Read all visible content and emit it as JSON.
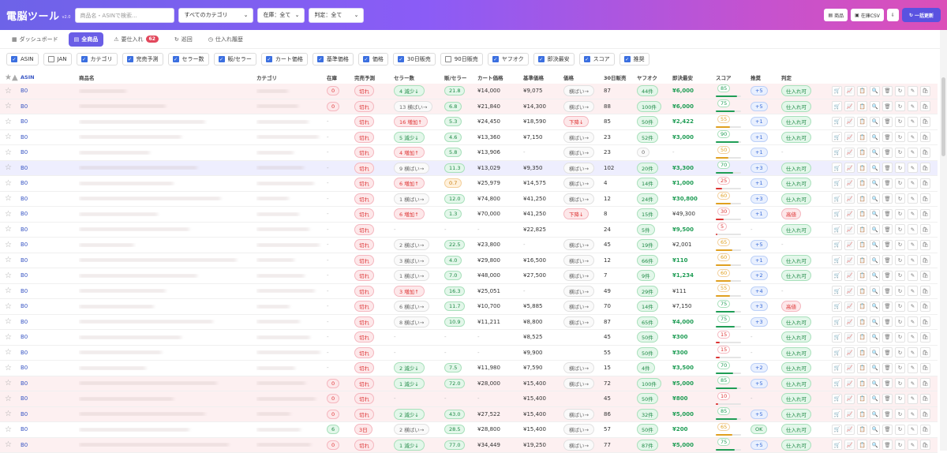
{
  "app": {
    "title": "電脳ツール",
    "version": "v2.0"
  },
  "search": {
    "placeholder": "商品名・ASINで検索..."
  },
  "filters": {
    "category": "すべてのカテゴリ",
    "stock": "在庫：全て",
    "judge": "判定：全て"
  },
  "top_buttons": {
    "product": "商品",
    "stock_csv": "在庫CSV",
    "download": "",
    "bulk_update": "一括更新"
  },
  "tabs": [
    {
      "label": "ダッシュボード",
      "icon": "grid-icon",
      "active": false
    },
    {
      "label": "全商品",
      "icon": "table-icon",
      "active": true
    },
    {
      "label": "要仕入れ",
      "icon": "alert-icon",
      "active": false,
      "badge": "62"
    },
    {
      "label": "巡回",
      "icon": "patrol-icon",
      "active": false
    },
    {
      "label": "仕入れ履歴",
      "icon": "history-icon",
      "active": false
    }
  ],
  "column_toggles": [
    {
      "label": "ASIN",
      "checked": true
    },
    {
      "label": "JAN",
      "checked": false
    },
    {
      "label": "カテゴリ",
      "checked": true
    },
    {
      "label": "完売予測",
      "checked": true
    },
    {
      "label": "セラー数",
      "checked": true
    },
    {
      "label": "販/セラー",
      "checked": true
    },
    {
      "label": "カート価格",
      "checked": true
    },
    {
      "label": "基準価格",
      "checked": true
    },
    {
      "label": "価格",
      "checked": true
    },
    {
      "label": "30日販売",
      "checked": true
    },
    {
      "label": "90日販売",
      "checked": false
    },
    {
      "label": "ヤフオク",
      "checked": true
    },
    {
      "label": "即決最安",
      "checked": true
    },
    {
      "label": "スコア",
      "checked": true
    },
    {
      "label": "推奨",
      "checked": true
    }
  ],
  "columns": {
    "star": "★▲",
    "asin": "ASIN",
    "name": "商品名",
    "cat": "カテゴリ",
    "stock": "在庫",
    "sold": "完売予測",
    "sellers": "セラー数",
    "ratio": "販/セラー",
    "cart": "カート価格",
    "base": "基準価格",
    "trend": "価格",
    "s30": "30日販売",
    "yafuoku": "ヤフオク",
    "imm": "即決最安",
    "score": "スコア",
    "rec": "推奨",
    "judge": "判定"
  },
  "rows": [
    {
      "asin": "B0",
      "stock": "0",
      "sold": "切れ",
      "sellers": "4 減少↓",
      "sellers_t": "green",
      "ratio": "21.8",
      "ratio_t": "green",
      "cart": "¥14,000",
      "base": "¥9,075",
      "trend": "横ばい→",
      "s30": "87",
      "yaf": "44件",
      "imm": "¥6,000",
      "imm_t": "g",
      "score": "85",
      "rec": "+5",
      "rec_t": "blue",
      "judge": "仕入れ可",
      "judge_t": "green",
      "bg": "pink",
      "star": "☆"
    },
    {
      "asin": "B0",
      "stock": "0",
      "sold": "切れ",
      "sellers": "13 横ばい→",
      "sellers_t": "gray",
      "ratio": "6.8",
      "ratio_t": "green",
      "cart": "¥21,840",
      "base": "¥14,300",
      "trend": "横ばい→",
      "s30": "88",
      "yaf": "100件",
      "imm": "¥6,000",
      "imm_t": "g",
      "score": "75",
      "rec": "+5",
      "rec_t": "blue",
      "judge": "仕入れ可",
      "judge_t": "green",
      "bg": "pink",
      "star": "☆"
    },
    {
      "asin": "B0",
      "stock": "-",
      "sold": "切れ",
      "sellers": "16 増加↑",
      "sellers_t": "red",
      "ratio": "5.3",
      "ratio_t": "green",
      "cart": "¥24,450",
      "base": "¥18,590",
      "trend": "下降↓",
      "trend_t": "red",
      "s30": "85",
      "yaf": "50件",
      "imm": "¥2,422",
      "imm_t": "g",
      "score": "55",
      "rec": "+1",
      "rec_t": "blue",
      "judge": "仕入れ可",
      "judge_t": "green",
      "bg": "",
      "star": "☆"
    },
    {
      "asin": "B0",
      "stock": "-",
      "sold": "切れ",
      "sellers": "5 減少↓",
      "sellers_t": "green",
      "ratio": "4.6",
      "ratio_t": "green",
      "cart": "¥13,360",
      "base": "¥7,150",
      "trend": "横ばい→",
      "s30": "23",
      "yaf": "52件",
      "imm": "¥3,000",
      "imm_t": "g",
      "score": "90",
      "rec": "+1",
      "rec_t": "blue",
      "judge": "仕入れ可",
      "judge_t": "green",
      "bg": "",
      "star": "☆"
    },
    {
      "asin": "B0",
      "stock": "-",
      "sold": "切れ",
      "sellers": "4 増加↑",
      "sellers_t": "red",
      "ratio": "5.8",
      "ratio_t": "green",
      "cart": "¥13,906",
      "base": "-",
      "trend": "横ばい→",
      "s30": "23",
      "yaf": "0",
      "yaf_t": "gray",
      "imm": "-",
      "imm_t": "d",
      "score": "50",
      "rec": "+1",
      "rec_t": "blue",
      "judge": "-",
      "judge_t": "none",
      "bg": "",
      "star": "☆"
    },
    {
      "asin": "B0",
      "stock": "-",
      "sold": "切れ",
      "sellers": "9 横ばい→",
      "sellers_t": "gray",
      "ratio": "11.3",
      "ratio_t": "green",
      "cart": "¥13,029",
      "base": "¥9,350",
      "trend": "横ばい→",
      "s30": "102",
      "yaf": "20件",
      "imm": "¥3,300",
      "imm_t": "g",
      "score": "70",
      "rec": "+3",
      "rec_t": "blue",
      "judge": "仕入れ可",
      "judge_t": "green",
      "bg": "hl",
      "star": "☆"
    },
    {
      "asin": "B0",
      "stock": "-",
      "sold": "切れ",
      "sellers": "6 増加↑",
      "sellers_t": "red",
      "ratio": "0.7",
      "ratio_t": "orange",
      "cart": "¥25,979",
      "base": "¥14,575",
      "trend": "横ばい→",
      "s30": "4",
      "yaf": "14件",
      "imm": "¥1,000",
      "imm_t": "g",
      "score": "25",
      "rec": "+1",
      "rec_t": "blue",
      "judge": "仕入れ可",
      "judge_t": "green",
      "bg": "",
      "star": "☆"
    },
    {
      "asin": "B0",
      "stock": "-",
      "sold": "切れ",
      "sellers": "1 横ばい→",
      "sellers_t": "gray",
      "ratio": "12.0",
      "ratio_t": "green",
      "cart": "¥74,800",
      "base": "¥41,250",
      "trend": "横ばい→",
      "s30": "12",
      "yaf": "24件",
      "imm": "¥30,800",
      "imm_t": "g",
      "score": "60",
      "rec": "+3",
      "rec_t": "blue",
      "judge": "仕入れ可",
      "judge_t": "green",
      "bg": "",
      "star": "☆"
    },
    {
      "asin": "B0",
      "stock": "-",
      "sold": "切れ",
      "sellers": "6 増加↑",
      "sellers_t": "red",
      "ratio": "1.3",
      "ratio_t": "green",
      "cart": "¥70,000",
      "base": "¥41,250",
      "trend": "下降↓",
      "trend_t": "red",
      "s30": "8",
      "yaf": "15件",
      "imm": "¥49,300",
      "imm_t": "n",
      "score": "30",
      "rec": "+1",
      "rec_t": "blue",
      "judge": "高値",
      "judge_t": "red",
      "bg": "",
      "star": "☆"
    },
    {
      "asin": "B0",
      "stock": "-",
      "sold": "切れ",
      "sellers": "-",
      "sellers_t": "none",
      "ratio": "-",
      "ratio_t": "none",
      "cart": "-",
      "base": "¥22,825",
      "trend": "",
      "s30": "24",
      "yaf": "5件",
      "imm": "¥9,500",
      "imm_t": "g",
      "score": "5",
      "rec": "-",
      "rec_t": "none",
      "judge": "仕入れ可",
      "judge_t": "green",
      "bg": "",
      "star": "☆"
    },
    {
      "asin": "B0",
      "stock": "-",
      "sold": "切れ",
      "sellers": "2 横ばい→",
      "sellers_t": "gray",
      "ratio": "22.5",
      "ratio_t": "green",
      "cart": "¥23,800",
      "base": "-",
      "trend": "横ばい→",
      "s30": "45",
      "yaf": "19件",
      "imm": "¥2,001",
      "imm_t": "n",
      "score": "65",
      "rec": "+5",
      "rec_t": "blue",
      "judge": "-",
      "judge_t": "none",
      "bg": "",
      "star": "☆"
    },
    {
      "asin": "B0",
      "stock": "-",
      "sold": "切れ",
      "sellers": "3 横ばい→",
      "sellers_t": "gray",
      "ratio": "4.0",
      "ratio_t": "green",
      "cart": "¥29,800",
      "base": "¥16,500",
      "trend": "横ばい→",
      "s30": "12",
      "yaf": "66件",
      "imm": "¥110",
      "imm_t": "g",
      "score": "60",
      "rec": "+1",
      "rec_t": "blue",
      "judge": "仕入れ可",
      "judge_t": "green",
      "bg": "",
      "star": "☆"
    },
    {
      "asin": "B0",
      "stock": "-",
      "sold": "切れ",
      "sellers": "1 横ばい→",
      "sellers_t": "gray",
      "ratio": "7.0",
      "ratio_t": "green",
      "cart": "¥48,000",
      "base": "¥27,500",
      "trend": "横ばい→",
      "s30": "7",
      "yaf": "9件",
      "imm": "¥1,234",
      "imm_t": "g",
      "score": "60",
      "rec": "+2",
      "rec_t": "blue",
      "judge": "仕入れ可",
      "judge_t": "green",
      "bg": "",
      "star": "☆"
    },
    {
      "asin": "B0",
      "stock": "-",
      "sold": "切れ",
      "sellers": "3 増加↑",
      "sellers_t": "red",
      "ratio": "16.3",
      "ratio_t": "green",
      "cart": "¥25,051",
      "base": "-",
      "trend": "横ばい→",
      "s30": "49",
      "yaf": "29件",
      "imm": "¥111",
      "imm_t": "n",
      "score": "55",
      "rec": "+4",
      "rec_t": "blue",
      "judge": "-",
      "judge_t": "none",
      "bg": "",
      "star": "☆"
    },
    {
      "asin": "B0",
      "stock": "-",
      "sold": "切れ",
      "sellers": "6 横ばい→",
      "sellers_t": "gray",
      "ratio": "11.7",
      "ratio_t": "green",
      "cart": "¥10,700",
      "base": "¥5,885",
      "trend": "横ばい→",
      "s30": "70",
      "yaf": "14件",
      "imm": "¥7,150",
      "imm_t": "n",
      "score": "75",
      "rec": "+3",
      "rec_t": "blue",
      "judge": "高値",
      "judge_t": "red",
      "bg": "",
      "star": "☆"
    },
    {
      "asin": "B0",
      "stock": "-",
      "sold": "切れ",
      "sellers": "8 横ばい→",
      "sellers_t": "gray",
      "ratio": "10.9",
      "ratio_t": "green",
      "cart": "¥11,211",
      "base": "¥8,800",
      "trend": "横ばい→",
      "s30": "87",
      "yaf": "65件",
      "imm": "¥4,000",
      "imm_t": "g",
      "score": "75",
      "rec": "+3",
      "rec_t": "blue",
      "judge": "仕入れ可",
      "judge_t": "green",
      "bg": "",
      "star": "☆"
    },
    {
      "asin": "B0",
      "stock": "-",
      "sold": "切れ",
      "sellers": "-",
      "sellers_t": "none",
      "ratio": "-",
      "ratio_t": "none",
      "cart": "-",
      "base": "¥8,525",
      "trend": "",
      "s30": "45",
      "yaf": "50件",
      "imm": "¥300",
      "imm_t": "g",
      "score": "15",
      "rec": "-",
      "rec_t": "none",
      "judge": "仕入れ可",
      "judge_t": "green",
      "bg": "",
      "star": "☆"
    },
    {
      "asin": "B0",
      "stock": "-",
      "sold": "切れ",
      "sellers": "-",
      "sellers_t": "none",
      "ratio": "-",
      "ratio_t": "none",
      "cart": "-",
      "base": "¥9,900",
      "trend": "",
      "s30": "55",
      "yaf": "50件",
      "imm": "¥300",
      "imm_t": "g",
      "score": "15",
      "rec": "-",
      "rec_t": "none",
      "judge": "仕入れ可",
      "judge_t": "green",
      "bg": "",
      "star": "☆"
    },
    {
      "asin": "B0",
      "stock": "-",
      "sold": "切れ",
      "sellers": "2 減少↓",
      "sellers_t": "green",
      "ratio": "7.5",
      "ratio_t": "green",
      "cart": "¥11,980",
      "base": "¥7,590",
      "trend": "横ばい→",
      "s30": "15",
      "yaf": "4件",
      "imm": "¥3,500",
      "imm_t": "g",
      "score": "70",
      "rec": "+2",
      "rec_t": "blue",
      "judge": "仕入れ可",
      "judge_t": "green",
      "bg": "",
      "star": "☆"
    },
    {
      "asin": "B0",
      "stock": "0",
      "sold": "切れ",
      "sellers": "1 減少↓",
      "sellers_t": "green",
      "ratio": "72.0",
      "ratio_t": "green",
      "cart": "¥28,000",
      "base": "¥15,400",
      "trend": "横ばい→",
      "s30": "72",
      "yaf": "100件",
      "imm": "¥5,000",
      "imm_t": "g",
      "score": "85",
      "rec": "+5",
      "rec_t": "blue",
      "judge": "仕入れ可",
      "judge_t": "green",
      "bg": "pink",
      "star": "☆"
    },
    {
      "asin": "B0",
      "stock": "0",
      "sold": "切れ",
      "sellers": "-",
      "sellers_t": "none",
      "ratio": "-",
      "ratio_t": "none",
      "cart": "-",
      "base": "¥15,400",
      "trend": "",
      "s30": "45",
      "yaf": "50件",
      "imm": "¥800",
      "imm_t": "g",
      "score": "10",
      "rec": "-",
      "rec_t": "none",
      "judge": "仕入れ可",
      "judge_t": "green",
      "bg": "pink",
      "star": "☆"
    },
    {
      "asin": "B0",
      "stock": "0",
      "sold": "切れ",
      "sellers": "2 減少↓",
      "sellers_t": "green",
      "ratio": "43.0",
      "ratio_t": "green",
      "cart": "¥27,522",
      "base": "¥15,400",
      "trend": "横ばい→",
      "s30": "86",
      "yaf": "32件",
      "imm": "¥5,000",
      "imm_t": "g",
      "score": "85",
      "rec": "+5",
      "rec_t": "blue",
      "judge": "仕入れ可",
      "judge_t": "green",
      "bg": "pink",
      "star": "☆"
    },
    {
      "asin": "B0",
      "stock": "6",
      "stock_t": "green",
      "sold": "3日",
      "sellers": "2 横ばい→",
      "sellers_t": "gray",
      "ratio": "28.5",
      "ratio_t": "green",
      "cart": "¥28,800",
      "base": "¥15,400",
      "trend": "横ばい→",
      "s30": "57",
      "yaf": "50件",
      "imm": "¥200",
      "imm_t": "g",
      "score": "65",
      "rec": "OK",
      "rec_t": "green",
      "judge": "仕入れ可",
      "judge_t": "green",
      "bg": "",
      "star": "☆"
    },
    {
      "asin": "B0",
      "stock": "0",
      "sold": "切れ",
      "sellers": "1 減少↓",
      "sellers_t": "green",
      "ratio": "77.0",
      "ratio_t": "green",
      "cart": "¥34,449",
      "base": "¥19,250",
      "trend": "横ばい→",
      "s30": "77",
      "yaf": "87件",
      "imm": "¥5,000",
      "imm_t": "g",
      "score": "75",
      "rec": "+5",
      "rec_t": "blue",
      "judge": "仕入れ可",
      "judge_t": "green",
      "bg": "pink",
      "star": "☆"
    }
  ],
  "row_actions": [
    {
      "name": "cart-icon",
      "glyph": "🛒"
    },
    {
      "name": "chart-icon",
      "glyph": "📈"
    },
    {
      "name": "clipboard-icon",
      "glyph": "📋"
    },
    {
      "name": "search-icon",
      "glyph": "🔍"
    },
    {
      "name": "delete-icon",
      "glyph": "🗑"
    },
    {
      "name": "refresh-icon",
      "glyph": "↻"
    },
    {
      "name": "edit-icon",
      "glyph": "✎"
    },
    {
      "name": "buy-icon",
      "glyph": "🛍"
    }
  ],
  "colors": {
    "accent": "#6a5ee6",
    "danger": "#d33",
    "success": "#1f9d55",
    "warning": "#c77b0a"
  }
}
